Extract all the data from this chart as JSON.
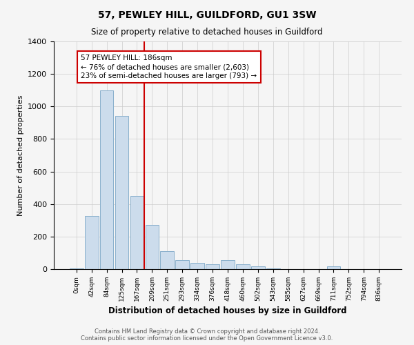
{
  "title": "57, PEWLEY HILL, GUILDFORD, GU1 3SW",
  "subtitle": "Size of property relative to detached houses in Guildford",
  "xlabel": "Distribution of detached houses by size in Guildford",
  "ylabel": "Number of detached properties",
  "bar_labels": [
    "0sqm",
    "42sqm",
    "84sqm",
    "125sqm",
    "167sqm",
    "209sqm",
    "251sqm",
    "293sqm",
    "334sqm",
    "376sqm",
    "418sqm",
    "460sqm",
    "502sqm",
    "543sqm",
    "585sqm",
    "627sqm",
    "669sqm",
    "711sqm",
    "752sqm",
    "794sqm",
    "836sqm"
  ],
  "bar_values": [
    5,
    325,
    1100,
    940,
    450,
    270,
    110,
    55,
    38,
    30,
    55,
    30,
    15,
    5,
    2,
    2,
    1,
    15,
    1,
    1,
    1
  ],
  "bar_color": "#ccdcec",
  "bar_edgecolor": "#8ab0cc",
  "red_line_x": 4.5,
  "annotation_text": "57 PEWLEY HILL: 186sqm\n← 76% of detached houses are smaller (2,603)\n23% of semi-detached houses are larger (793) →",
  "annotation_box_color": "white",
  "annotation_box_edgecolor": "#cc0000",
  "red_line_color": "#cc0000",
  "ylim": [
    0,
    1400
  ],
  "yticks": [
    0,
    200,
    400,
    600,
    800,
    1000,
    1200,
    1400
  ],
  "footer": "Contains HM Land Registry data © Crown copyright and database right 2024.\nContains public sector information licensed under the Open Government Licence v3.0.",
  "background_color": "#f5f5f5",
  "grid_color": "#cccccc",
  "figsize": [
    6.0,
    5.0
  ],
  "dpi": 100
}
